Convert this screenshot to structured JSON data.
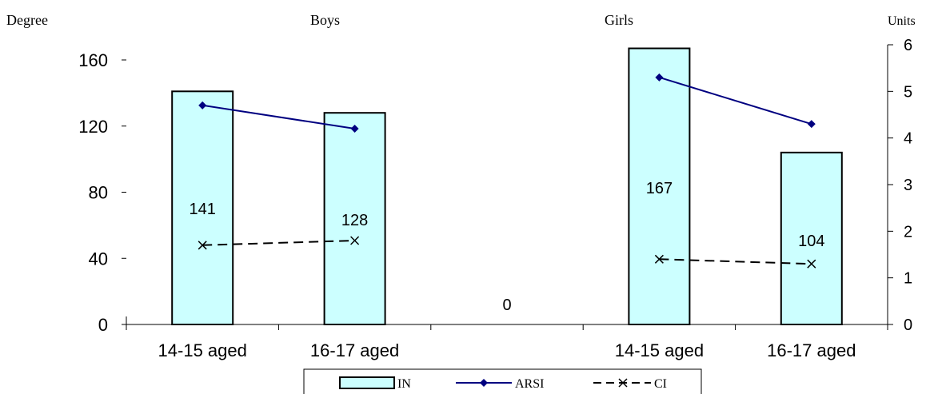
{
  "chart_data": {
    "type": "bar",
    "left_axis_label": "Degree",
    "right_axis_label": "Units",
    "groups": [
      "Boys",
      "Girls"
    ],
    "categories": [
      "14-15 aged",
      "16-17 aged",
      "",
      "14-15 aged",
      "16-17 aged"
    ],
    "left_ticks": [
      "0",
      "40",
      "80",
      "120",
      "160"
    ],
    "right_ticks": [
      "0",
      "1",
      "2",
      "3",
      "4",
      "5",
      "6"
    ],
    "y_left_lim": [
      0,
      170
    ],
    "y_right_lim": [
      0,
      6
    ],
    "series": [
      {
        "name": "IN",
        "axis": "left",
        "kind": "bar",
        "color": "#ccffff",
        "values": [
          141,
          128,
          0,
          167,
          104
        ],
        "labels": [
          "141",
          "128",
          "0",
          "167",
          "104"
        ]
      },
      {
        "name": "ARSI",
        "axis": "right",
        "kind": "line",
        "color": "#000080",
        "values": [
          4.7,
          4.2,
          null,
          5.3,
          4.3
        ]
      },
      {
        "name": "CI",
        "axis": "right",
        "kind": "line",
        "color": "#000000",
        "dashed": true,
        "values": [
          1.7,
          1.8,
          null,
          1.4,
          1.3
        ]
      }
    ],
    "legend_position": "bottom",
    "grid": false
  }
}
